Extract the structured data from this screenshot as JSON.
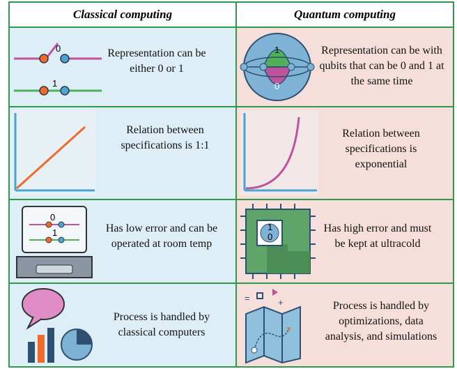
{
  "header": {
    "left": "Classical computing",
    "right": "Quantum computing"
  },
  "rows": [
    {
      "classical": "Representation can be either 0 or 1",
      "quantum": "Representation can be with qubits that can be 0 and 1 at the same time",
      "classical_icon": {
        "top": "0",
        "bottom": "1"
      },
      "quantum_icon": {
        "top": "1",
        "bottom": "0"
      }
    },
    {
      "classical": "Relation between specifications is 1:1",
      "quantum": "Relation between specifications is exponential"
    },
    {
      "classical": "Has low error and can be operated at room temp",
      "quantum": "Has high error and must be kept at ultracold",
      "classical_icon": {
        "top": "0",
        "bottom": "1"
      },
      "quantum_icon": {
        "top": "1",
        "bottom": "0"
      }
    },
    {
      "classical": "Process is handled by classical computers",
      "quantum": "Process is handled by optimizations, data analysis, and simulations"
    }
  ]
}
